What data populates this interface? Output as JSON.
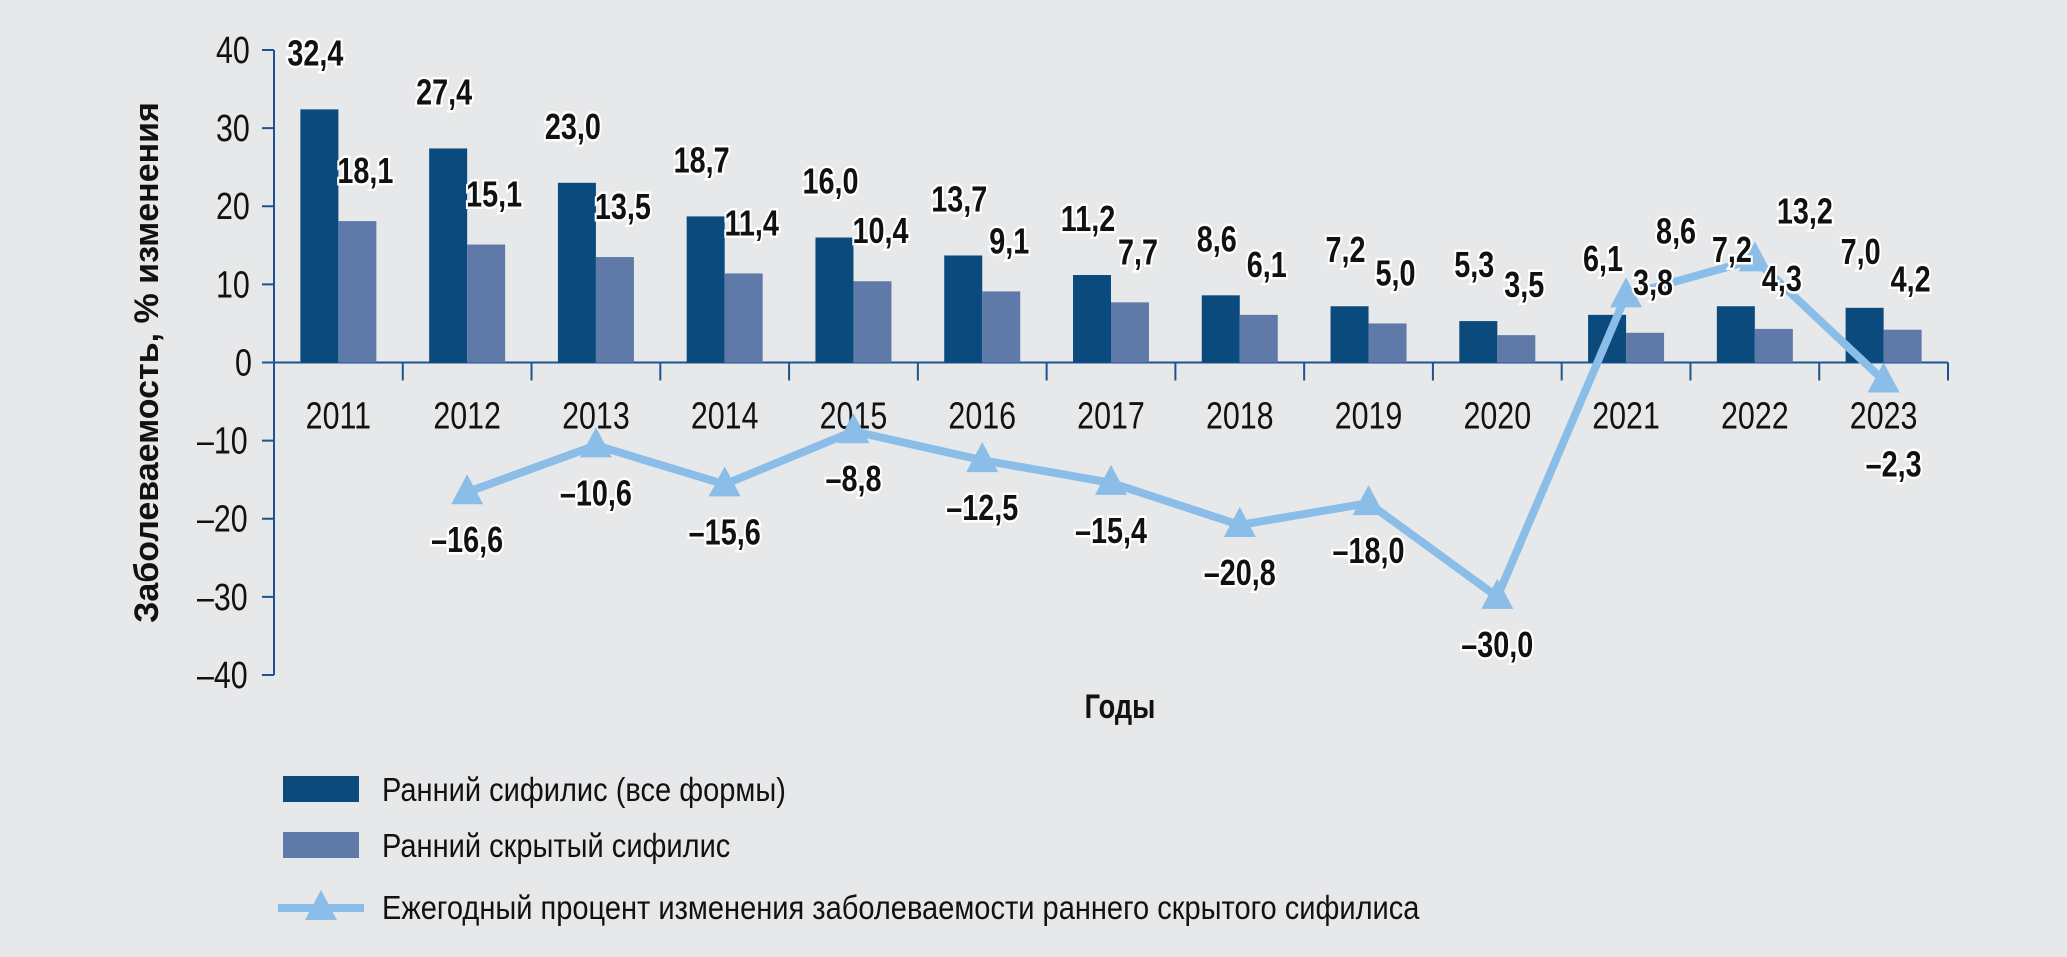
{
  "chart_data": {
    "type": "bar",
    "categories": [
      "2011",
      "2012",
      "2013",
      "2014",
      "2015",
      "2016",
      "2017",
      "2018",
      "2019",
      "2020",
      "2021",
      "2022",
      "2023"
    ],
    "series": [
      {
        "name": "Ранний сифилис (все формы)",
        "kind": "bar",
        "color": "#0b4a7d",
        "values": [
          32.4,
          27.4,
          23.0,
          18.7,
          16.0,
          13.7,
          11.2,
          8.6,
          7.2,
          5.3,
          6.1,
          7.2,
          7.0
        ],
        "labels": [
          "32,4",
          "27,4",
          "23,0",
          "18,7",
          "16,0",
          "13,7",
          "11,2",
          "8,6",
          "7,2",
          "5,3",
          "6,1",
          "7,2",
          "7,0"
        ]
      },
      {
        "name": "Ранний скрытый сифилис",
        "kind": "bar",
        "color": "#5f7aa9",
        "values": [
          18.1,
          15.1,
          13.5,
          11.4,
          10.4,
          9.1,
          7.7,
          6.1,
          5.0,
          3.5,
          3.8,
          4.3,
          4.2
        ],
        "labels": [
          "18,1",
          "15,1",
          "13,5",
          "11,4",
          "10,4",
          "9,1",
          "7,7",
          "6,1",
          "5,0",
          "3,5",
          "3,8",
          "4,3",
          "4,2"
        ]
      },
      {
        "name": "Ежегодный процент изменения заболеваемости раннего скрытого сифилиса",
        "kind": "line",
        "color": "#8abde8",
        "values": [
          null,
          -16.6,
          -10.6,
          -15.6,
          -8.8,
          -12.5,
          -15.4,
          -20.8,
          -18.0,
          -30.0,
          8.6,
          13.2,
          -2.3
        ],
        "labels": [
          null,
          "–16,6",
          "–10,6",
          "–15,6",
          "–8,8",
          "–12,5",
          "–15,4",
          "–20,8",
          "–18,0",
          "–30,0",
          "8,6",
          "13,2",
          "–2,3"
        ]
      }
    ],
    "ylabel": "Заболеваемость, % изменения",
    "xlabel": "Годы",
    "ylim": [
      -40,
      40
    ],
    "yticks": [
      40,
      30,
      20,
      10,
      0,
      -10,
      -20,
      -30,
      -40
    ],
    "ytick_labels": [
      "40",
      "30",
      "20",
      "10",
      "0",
      "–10",
      "–20",
      "–30",
      "–40"
    ],
    "grid": false,
    "legend_position": "bottom-left"
  },
  "colors": {
    "axis": "#1d5390",
    "background": "#e7e8ea"
  }
}
